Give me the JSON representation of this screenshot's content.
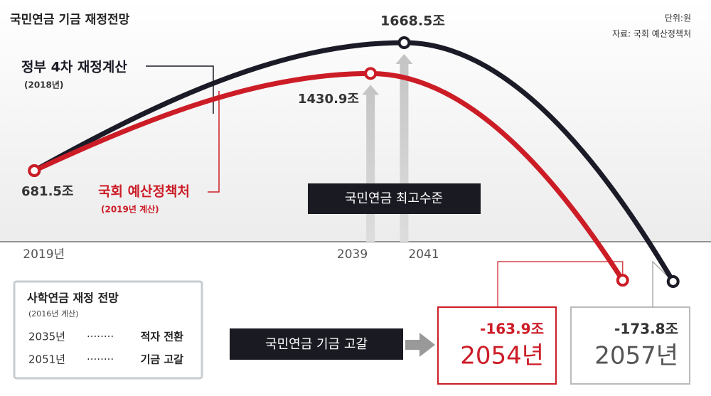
{
  "chart_data": {
    "type": "line",
    "title": "국민연금 기금 재정전망",
    "unit": "단위:원",
    "source": "자료: 국회 예산정책처",
    "xlim": [
      2017,
      2059
    ],
    "ylim": [
      -300,
      1800
    ],
    "xticks": [
      {
        "value": 2019,
        "label": "2019년"
      },
      2039,
      2041
    ],
    "series": [
      {
        "name": "정부 4차 재정계산",
        "period": "(2018년)",
        "color": "#1b1b27",
        "x": [
          2019,
          2041,
          2057
        ],
        "values": [
          681.5,
          1668.5,
          -173.8
        ],
        "value_labels": [
          "681.5조",
          "1668.5조",
          "-173.8조"
        ],
        "depletion_label": "2057년"
      },
      {
        "name": "국회 예산정책처",
        "period": "(2019년 계산)",
        "color": "#cc1d27",
        "x": [
          2019,
          2039,
          2054
        ],
        "values": [
          681.5,
          1430.9,
          -163.9
        ],
        "value_labels": [
          null,
          "1430.9조",
          "-163.9조"
        ],
        "depletion_label": "2054년"
      }
    ],
    "peak_note": "국민연금 최고수준",
    "depletion_note": "국민연금 기금 고갈",
    "sidebar": {
      "title": "사학연금 재정 전망",
      "note": "(2016년 계산)",
      "rows": [
        [
          "2035년",
          "적자 전환"
        ],
        [
          "2051년",
          "기금 고갈"
        ]
      ]
    }
  }
}
